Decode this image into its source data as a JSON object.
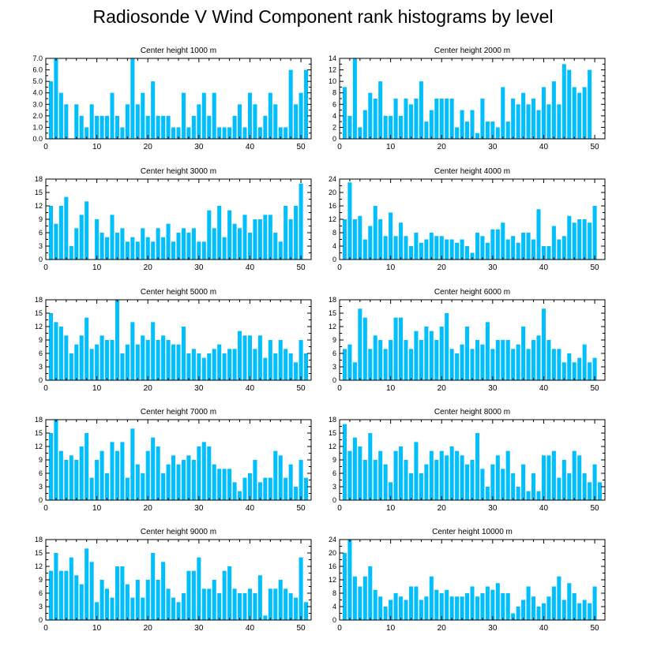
{
  "figure": {
    "title": "Radiosonde V Wind Component rank histograms by level",
    "bar_color": "#00BFFF",
    "axis_color": "#000000"
  },
  "chart_data": [
    {
      "type": "bar",
      "title": "Center height 1000 m",
      "x": [
        1,
        2,
        3,
        4,
        5,
        6,
        7,
        8,
        9,
        10,
        11,
        12,
        13,
        14,
        15,
        16,
        17,
        18,
        19,
        20,
        21,
        22,
        23,
        24,
        25,
        26,
        27,
        28,
        29,
        30,
        31,
        32,
        33,
        34,
        35,
        36,
        37,
        38,
        39,
        40,
        41,
        42,
        43,
        44,
        45,
        46,
        47,
        48,
        49,
        50,
        51
      ],
      "values": [
        5,
        7,
        4,
        3,
        0,
        3,
        2,
        1,
        3,
        2,
        2,
        2,
        4,
        2,
        1,
        3,
        7,
        3,
        4,
        2,
        5,
        2,
        2,
        2,
        1,
        1,
        4,
        1,
        2,
        3,
        4,
        2,
        4,
        1,
        1,
        1,
        2,
        3,
        1,
        4,
        3,
        1,
        2,
        4,
        3,
        1,
        1,
        6,
        3,
        4,
        6
      ],
      "xlim": [
        0,
        52
      ],
      "ylim": [
        0,
        7
      ],
      "xticks": [
        0,
        10,
        20,
        30,
        40,
        50
      ],
      "yticks": [
        0,
        1,
        2,
        3,
        4,
        5,
        6,
        7
      ],
      "ytick_labels": [
        "0.0",
        "1.0",
        "2.0",
        "3.0",
        "4.0",
        "5.0",
        "6.0",
        "7.0"
      ]
    },
    {
      "type": "bar",
      "title": "Center height 2000 m",
      "x": [
        1,
        2,
        3,
        4,
        5,
        6,
        7,
        8,
        9,
        10,
        11,
        12,
        13,
        14,
        15,
        16,
        17,
        18,
        19,
        20,
        21,
        22,
        23,
        24,
        25,
        26,
        27,
        28,
        29,
        30,
        31,
        32,
        33,
        34,
        35,
        36,
        37,
        38,
        39,
        40,
        41,
        42,
        43,
        44,
        45,
        46,
        47,
        48,
        49,
        50,
        51
      ],
      "values": [
        9,
        4,
        14,
        2,
        5,
        8,
        7,
        10,
        4,
        4,
        7,
        4,
        7,
        6,
        7,
        10,
        3,
        5,
        7,
        7,
        7,
        7,
        2,
        5,
        3,
        5,
        1,
        7,
        3,
        3,
        2,
        9,
        3,
        7,
        6,
        8,
        6,
        7,
        5,
        9,
        6,
        10,
        6,
        13,
        12,
        9,
        8,
        9,
        12,
        0,
        0
      ],
      "xlim": [
        0,
        52
      ],
      "ylim": [
        0,
        14
      ],
      "xticks": [
        0,
        10,
        20,
        30,
        40,
        50
      ],
      "yticks": [
        0,
        2,
        4,
        6,
        8,
        10,
        12,
        14
      ],
      "ytick_labels": [
        "0",
        "2",
        "4",
        "6",
        "8",
        "10",
        "12",
        "14"
      ]
    },
    {
      "type": "bar",
      "title": "Center height 3000 m",
      "x": [
        1,
        2,
        3,
        4,
        5,
        6,
        7,
        8,
        9,
        10,
        11,
        12,
        13,
        14,
        15,
        16,
        17,
        18,
        19,
        20,
        21,
        22,
        23,
        24,
        25,
        26,
        27,
        28,
        29,
        30,
        31,
        32,
        33,
        34,
        35,
        36,
        37,
        38,
        39,
        40,
        41,
        42,
        43,
        44,
        45,
        46,
        47,
        48,
        49,
        50,
        51
      ],
      "values": [
        12,
        8,
        12,
        14,
        3,
        7,
        10,
        13,
        0,
        9,
        6,
        5,
        10,
        6,
        7,
        4,
        5,
        4,
        7,
        5,
        4,
        7,
        5,
        8,
        4,
        6,
        7,
        6,
        7,
        4,
        4,
        11,
        7,
        12,
        5,
        11,
        8,
        7,
        10,
        6,
        9,
        9,
        10,
        10,
        6,
        4,
        12,
        9,
        12,
        17,
        0
      ],
      "xlim": [
        0,
        52
      ],
      "ylim": [
        0,
        18
      ],
      "xticks": [
        0,
        10,
        20,
        30,
        40,
        50
      ],
      "yticks": [
        0,
        3,
        6,
        9,
        12,
        15,
        18
      ],
      "ytick_labels": [
        "0",
        "3",
        "6",
        "9",
        "12",
        "15",
        "18"
      ]
    },
    {
      "type": "bar",
      "title": "Center height 4000 m",
      "x": [
        1,
        2,
        3,
        4,
        5,
        6,
        7,
        8,
        9,
        10,
        11,
        12,
        13,
        14,
        15,
        16,
        17,
        18,
        19,
        20,
        21,
        22,
        23,
        24,
        25,
        26,
        27,
        28,
        29,
        30,
        31,
        32,
        33,
        34,
        35,
        36,
        37,
        38,
        39,
        40,
        41,
        42,
        43,
        44,
        45,
        46,
        47,
        48,
        49,
        50,
        51
      ],
      "values": [
        12,
        23,
        12,
        13,
        6,
        10,
        16,
        12,
        7,
        14,
        7,
        11,
        7,
        4,
        8,
        5,
        6,
        8,
        7,
        7,
        6,
        6,
        5,
        6,
        4,
        2,
        8,
        7,
        5,
        9,
        9,
        11,
        6,
        7,
        5,
        8,
        8,
        6,
        15,
        4,
        4,
        10,
        6,
        7,
        13,
        11,
        12,
        12,
        11,
        16,
        0
      ],
      "xlim": [
        0,
        52
      ],
      "ylim": [
        0,
        24
      ],
      "xticks": [
        0,
        10,
        20,
        30,
        40,
        50
      ],
      "yticks": [
        0,
        4,
        8,
        12,
        16,
        20,
        24
      ],
      "ytick_labels": [
        "0",
        "4",
        "8",
        "12",
        "16",
        "20",
        "24"
      ]
    },
    {
      "type": "bar",
      "title": "Center height 5000 m",
      "x": [
        1,
        2,
        3,
        4,
        5,
        6,
        7,
        8,
        9,
        10,
        11,
        12,
        13,
        14,
        15,
        16,
        17,
        18,
        19,
        20,
        21,
        22,
        23,
        24,
        25,
        26,
        27,
        28,
        29,
        30,
        31,
        32,
        33,
        34,
        35,
        36,
        37,
        38,
        39,
        40,
        41,
        42,
        43,
        44,
        45,
        46,
        47,
        48,
        49,
        50,
        51
      ],
      "values": [
        15,
        13,
        12,
        10,
        6,
        8,
        10,
        14,
        7,
        8,
        10,
        9,
        9,
        18,
        6,
        8,
        13,
        8,
        10,
        9,
        13,
        9,
        10,
        9,
        8,
        8,
        12,
        6,
        7,
        6,
        5,
        6,
        7,
        8,
        6,
        7,
        7,
        11,
        10,
        10,
        7,
        10,
        5,
        9,
        6,
        9,
        7,
        6,
        4,
        9,
        6
      ],
      "xlim": [
        0,
        52
      ],
      "ylim": [
        0,
        18
      ],
      "xticks": [
        0,
        10,
        20,
        30,
        40,
        50
      ],
      "yticks": [
        0,
        3,
        6,
        9,
        12,
        15,
        18
      ],
      "ytick_labels": [
        "0",
        "3",
        "6",
        "9",
        "12",
        "15",
        "18"
      ]
    },
    {
      "type": "bar",
      "title": "Center height 6000 m",
      "x": [
        1,
        2,
        3,
        4,
        5,
        6,
        7,
        8,
        9,
        10,
        11,
        12,
        13,
        14,
        15,
        16,
        17,
        18,
        19,
        20,
        21,
        22,
        23,
        24,
        25,
        26,
        27,
        28,
        29,
        30,
        31,
        32,
        33,
        34,
        35,
        36,
        37,
        38,
        39,
        40,
        41,
        42,
        43,
        44,
        45,
        46,
        47,
        48,
        49,
        50,
        51
      ],
      "values": [
        7,
        8,
        4,
        16,
        14,
        7,
        10,
        9,
        7,
        9,
        14,
        14,
        9,
        7,
        11,
        9,
        12,
        11,
        9,
        12,
        15,
        7,
        6,
        8,
        12,
        7,
        9,
        8,
        13,
        7,
        9,
        9,
        9,
        7,
        8,
        12,
        7,
        9,
        10,
        16,
        9,
        7,
        7,
        4,
        6,
        4,
        5,
        8,
        4,
        5,
        0
      ],
      "xlim": [
        0,
        52
      ],
      "ylim": [
        0,
        18
      ],
      "xticks": [
        0,
        10,
        20,
        30,
        40,
        50
      ],
      "yticks": [
        0,
        3,
        6,
        9,
        12,
        15,
        18
      ],
      "ytick_labels": [
        "0",
        "3",
        "6",
        "9",
        "12",
        "15",
        "18"
      ]
    },
    {
      "type": "bar",
      "title": "Center height 7000 m",
      "x": [
        1,
        2,
        3,
        4,
        5,
        6,
        7,
        8,
        9,
        10,
        11,
        12,
        13,
        14,
        15,
        16,
        17,
        18,
        19,
        20,
        21,
        22,
        23,
        24,
        25,
        26,
        27,
        28,
        29,
        30,
        31,
        32,
        33,
        34,
        35,
        36,
        37,
        38,
        39,
        40,
        41,
        42,
        43,
        44,
        45,
        46,
        47,
        48,
        49,
        50,
        51
      ],
      "values": [
        15,
        18,
        11,
        9,
        10,
        9,
        12,
        15,
        5,
        9,
        11,
        6,
        13,
        11,
        13,
        5,
        16,
        8,
        6,
        11,
        14,
        12,
        6,
        8,
        10,
        8,
        9,
        10,
        9,
        12,
        13,
        12,
        8,
        7,
        7,
        7,
        4,
        2,
        5,
        6,
        9,
        4,
        5,
        5,
        11,
        10,
        5,
        8,
        3,
        9,
        5
      ],
      "xlim": [
        0,
        52
      ],
      "ylim": [
        0,
        18
      ],
      "xticks": [
        0,
        10,
        20,
        30,
        40,
        50
      ],
      "yticks": [
        0,
        3,
        6,
        9,
        12,
        15,
        18
      ],
      "ytick_labels": [
        "0",
        "3",
        "6",
        "9",
        "12",
        "15",
        "18"
      ]
    },
    {
      "type": "bar",
      "title": "Center height 8000 m",
      "x": [
        1,
        2,
        3,
        4,
        5,
        6,
        7,
        8,
        9,
        10,
        11,
        12,
        13,
        14,
        15,
        16,
        17,
        18,
        19,
        20,
        21,
        22,
        23,
        24,
        25,
        26,
        27,
        28,
        29,
        30,
        31,
        32,
        33,
        34,
        35,
        36,
        37,
        38,
        39,
        40,
        41,
        42,
        43,
        44,
        45,
        46,
        47,
        48,
        49,
        50,
        51
      ],
      "values": [
        17,
        11,
        14,
        12,
        9,
        15,
        9,
        11,
        8,
        4,
        11,
        12,
        9,
        6,
        13,
        6,
        8,
        11,
        9,
        11,
        10,
        12,
        11,
        10,
        8,
        9,
        15,
        7,
        3,
        8,
        10,
        7,
        11,
        6,
        3,
        8,
        2,
        6,
        2,
        10,
        10,
        11,
        5,
        9,
        6,
        11,
        10,
        6,
        4,
        8,
        4
      ],
      "xlim": [
        0,
        52
      ],
      "ylim": [
        0,
        18
      ],
      "xticks": [
        0,
        10,
        20,
        30,
        40,
        50
      ],
      "yticks": [
        0,
        3,
        6,
        9,
        12,
        15,
        18
      ],
      "ytick_labels": [
        "0",
        "3",
        "6",
        "9",
        "12",
        "15",
        "18"
      ]
    },
    {
      "type": "bar",
      "title": "Center height 9000 m",
      "x": [
        1,
        2,
        3,
        4,
        5,
        6,
        7,
        8,
        9,
        10,
        11,
        12,
        13,
        14,
        15,
        16,
        17,
        18,
        19,
        20,
        21,
        22,
        23,
        24,
        25,
        26,
        27,
        28,
        29,
        30,
        31,
        32,
        33,
        34,
        35,
        36,
        37,
        38,
        39,
        40,
        41,
        42,
        43,
        44,
        45,
        46,
        47,
        48,
        49,
        50,
        51
      ],
      "values": [
        11,
        15,
        11,
        11,
        14,
        10,
        8,
        16,
        13,
        4,
        9,
        7,
        5,
        12,
        12,
        8,
        5,
        9,
        5,
        9,
        15,
        9,
        13,
        7,
        5,
        4,
        6,
        11,
        11,
        14,
        7,
        7,
        9,
        6,
        11,
        12,
        7,
        6,
        6,
        7,
        6,
        10,
        1,
        7,
        7,
        9,
        7,
        6,
        5,
        14,
        4
      ],
      "xlim": [
        0,
        52
      ],
      "ylim": [
        0,
        18
      ],
      "xticks": [
        0,
        10,
        20,
        30,
        40,
        50
      ],
      "yticks": [
        0,
        3,
        6,
        9,
        12,
        15,
        18
      ],
      "ytick_labels": [
        "0",
        "3",
        "6",
        "9",
        "12",
        "15",
        "18"
      ]
    },
    {
      "type": "bar",
      "title": "Center height 10000 m",
      "x": [
        1,
        2,
        3,
        4,
        5,
        6,
        7,
        8,
        9,
        10,
        11,
        12,
        13,
        14,
        15,
        16,
        17,
        18,
        19,
        20,
        21,
        22,
        23,
        24,
        25,
        26,
        27,
        28,
        29,
        30,
        31,
        32,
        33,
        34,
        35,
        36,
        37,
        38,
        39,
        40,
        41,
        42,
        43,
        44,
        45,
        46,
        47,
        48,
        49,
        50,
        51
      ],
      "values": [
        20,
        24,
        13,
        10,
        13,
        16,
        9,
        7,
        4,
        6,
        8,
        7,
        6,
        10,
        10,
        6,
        7,
        13,
        9,
        8,
        9,
        7,
        7,
        7,
        8,
        10,
        7,
        8,
        10,
        9,
        11,
        8,
        8,
        2,
        4,
        6,
        10,
        7,
        4,
        5,
        7,
        10,
        13,
        6,
        11,
        8,
        5,
        6,
        5,
        10,
        0
      ],
      "xlim": [
        0,
        52
      ],
      "ylim": [
        0,
        24
      ],
      "xticks": [
        0,
        10,
        20,
        30,
        40,
        50
      ],
      "yticks": [
        0,
        4,
        8,
        12,
        16,
        20,
        24
      ],
      "ytick_labels": [
        "0",
        "4",
        "8",
        "12",
        "16",
        "20",
        "24"
      ]
    }
  ]
}
